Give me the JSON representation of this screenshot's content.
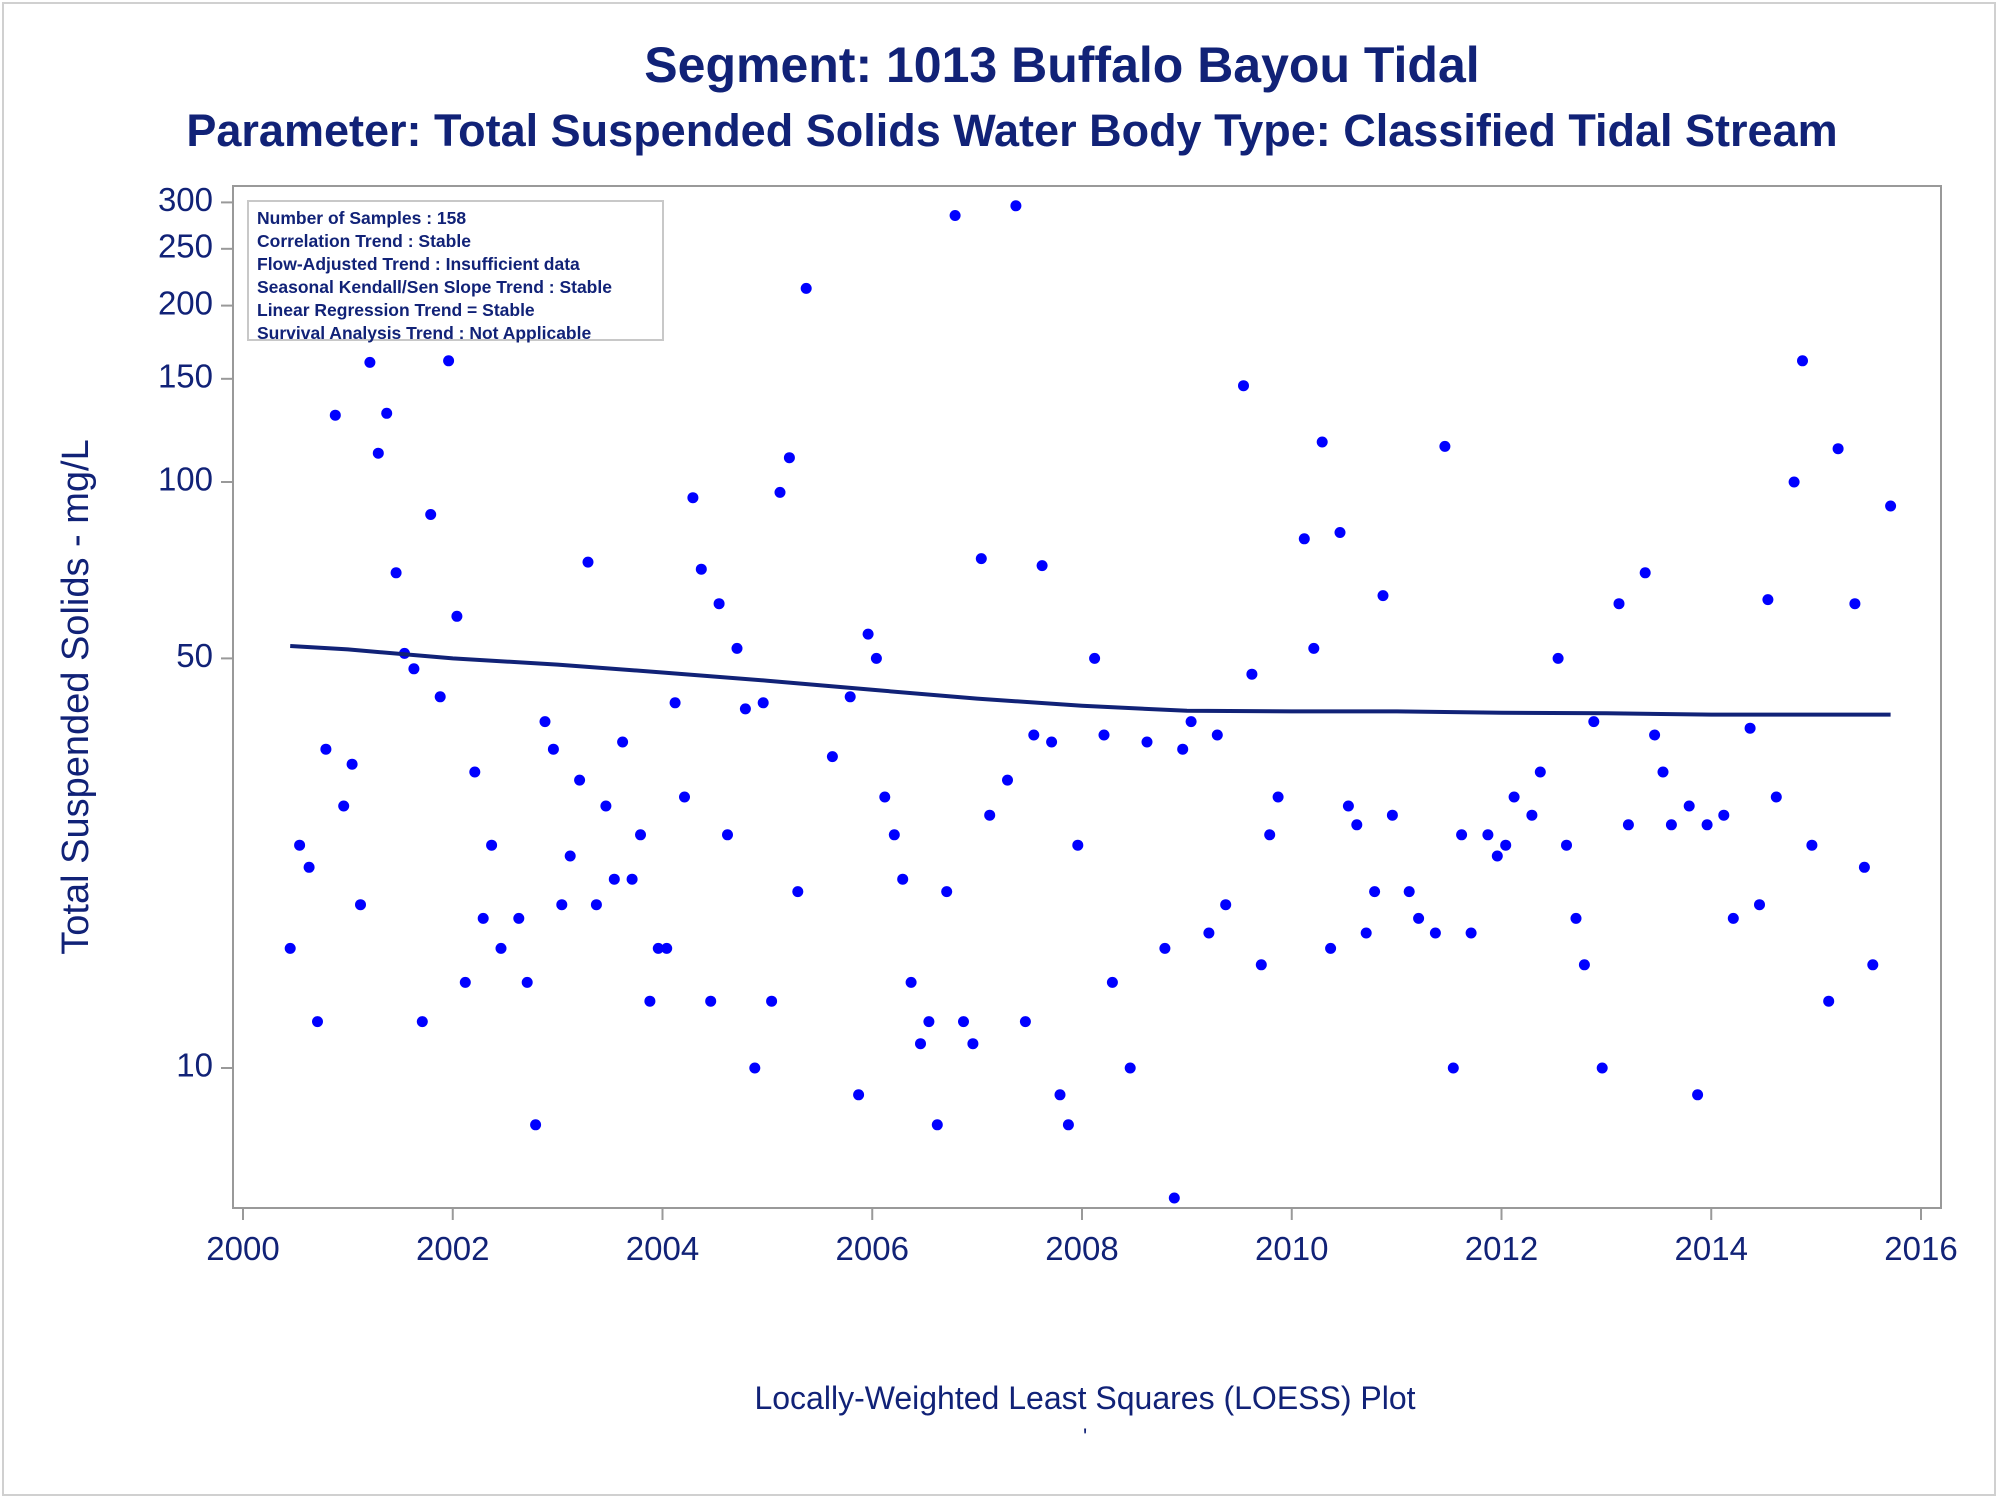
{
  "header": {
    "title": "Segment: 1013  Buffalo Bayou Tidal",
    "subtitle": "Parameter: Total Suspended Solids   Water Body Type: Classified Tidal Stream"
  },
  "stats": [
    "Number of Samples : 158",
    "Correlation Trend : Stable",
    "Flow-Adjusted Trend : Insufficient data",
    "Seasonal Kendall/Sen Slope Trend : Stable",
    "Linear Regression Trend = Stable",
    "Survival Analysis Trend : Not Applicable"
  ],
  "footer": {
    "label": "Locally-Weighted Least Squares (LOESS) Plot",
    "mark": "'"
  },
  "colors": {
    "text": "#112277",
    "points": "#0000ff",
    "line": "#112277",
    "axis": "#999999"
  },
  "chart_data": {
    "type": "scatter",
    "title": "Segment: 1013  Buffalo Bayou Tidal",
    "subtitle": "Parameter: Total Suspended Solids   Water Body Type: Classified Tidal Stream",
    "xlabel": "",
    "ylabel": "Total Suspended Solids - mg/L",
    "x_scale": "linear",
    "y_scale": "log",
    "xlim": [
      1999.9,
      2016.3
    ],
    "ylim": [
      6,
      330
    ],
    "x_ticks": [
      2000,
      2002,
      2004,
      2006,
      2008,
      2010,
      2012,
      2014,
      2016
    ],
    "y_ticks": [
      10,
      50,
      100,
      150,
      200,
      250,
      300
    ],
    "grid": false,
    "legend": "none",
    "series": [
      {
        "type": "scatter",
        "points": [
          [
            2000.45,
            16
          ],
          [
            2000.54,
            24
          ],
          [
            2000.63,
            22
          ],
          [
            2000.71,
            12
          ],
          [
            2000.79,
            35
          ],
          [
            2000.88,
            130
          ],
          [
            2000.96,
            28
          ],
          [
            2001.04,
            33
          ],
          [
            2001.12,
            19
          ],
          [
            2001.21,
            160
          ],
          [
            2001.29,
            112
          ],
          [
            2001.37,
            131
          ],
          [
            2001.46,
            70
          ],
          [
            2001.54,
            51
          ],
          [
            2001.63,
            48
          ],
          [
            2001.71,
            12
          ],
          [
            2001.79,
            88
          ],
          [
            2001.88,
            43
          ],
          [
            2001.96,
            161
          ],
          [
            2002.04,
            59
          ],
          [
            2002.12,
            14
          ],
          [
            2002.21,
            32
          ],
          [
            2002.29,
            18
          ],
          [
            2002.37,
            24
          ],
          [
            2002.46,
            16
          ],
          [
            2002.54,
            192
          ],
          [
            2002.63,
            18
          ],
          [
            2002.71,
            14
          ],
          [
            2002.79,
            8
          ],
          [
            2002.88,
            39
          ],
          [
            2002.96,
            35
          ],
          [
            2003.04,
            19
          ],
          [
            2003.12,
            23
          ],
          [
            2003.21,
            31
          ],
          [
            2003.29,
            73
          ],
          [
            2003.37,
            19
          ],
          [
            2003.46,
            28
          ],
          [
            2003.54,
            21
          ],
          [
            2003.62,
            36
          ],
          [
            2003.71,
            21
          ],
          [
            2003.79,
            25
          ],
          [
            2003.88,
            13
          ],
          [
            2003.96,
            16
          ],
          [
            2004.04,
            16
          ],
          [
            2004.12,
            42
          ],
          [
            2004.21,
            29
          ],
          [
            2004.29,
            94
          ],
          [
            2004.37,
            71
          ],
          [
            2004.46,
            13
          ],
          [
            2004.54,
            62
          ],
          [
            2004.62,
            25
          ],
          [
            2004.71,
            52
          ],
          [
            2004.79,
            41
          ],
          [
            2004.88,
            10
          ],
          [
            2004.96,
            42
          ],
          [
            2005.04,
            13
          ],
          [
            2005.12,
            96
          ],
          [
            2005.21,
            110
          ],
          [
            2005.29,
            20
          ],
          [
            2005.37,
            214
          ],
          [
            2005.62,
            34
          ],
          [
            2005.79,
            43
          ],
          [
            2005.87,
            9
          ],
          [
            2005.96,
            55
          ],
          [
            2006.04,
            50
          ],
          [
            2006.12,
            29
          ],
          [
            2006.21,
            25
          ],
          [
            2006.29,
            21
          ],
          [
            2006.37,
            14
          ],
          [
            2006.46,
            11
          ],
          [
            2006.54,
            12
          ],
          [
            2006.62,
            8
          ],
          [
            2006.71,
            20
          ],
          [
            2006.79,
            285
          ],
          [
            2006.87,
            12
          ],
          [
            2006.96,
            11
          ],
          [
            2007.04,
            74
          ],
          [
            2007.12,
            27
          ],
          [
            2007.29,
            31
          ],
          [
            2007.37,
            296
          ],
          [
            2007.46,
            12
          ],
          [
            2007.54,
            37
          ],
          [
            2007.62,
            72
          ],
          [
            2007.71,
            36
          ],
          [
            2007.79,
            9
          ],
          [
            2007.87,
            8
          ],
          [
            2007.96,
            24
          ],
          [
            2008.12,
            50
          ],
          [
            2008.21,
            37
          ],
          [
            2008.29,
            14
          ],
          [
            2008.46,
            10
          ],
          [
            2008.62,
            36
          ],
          [
            2008.79,
            16
          ],
          [
            2008.88,
            6
          ],
          [
            2008.96,
            35
          ],
          [
            2009.04,
            39
          ],
          [
            2009.21,
            17
          ],
          [
            2009.29,
            37
          ],
          [
            2009.37,
            19
          ],
          [
            2009.54,
            146
          ],
          [
            2009.62,
            47
          ],
          [
            2009.71,
            15
          ],
          [
            2009.79,
            25
          ],
          [
            2009.87,
            29
          ],
          [
            2010.12,
            80
          ],
          [
            2010.21,
            52
          ],
          [
            2010.29,
            117
          ],
          [
            2010.37,
            16
          ],
          [
            2010.46,
            82
          ],
          [
            2010.54,
            28
          ],
          [
            2010.62,
            26
          ],
          [
            2010.71,
            17
          ],
          [
            2010.79,
            20
          ],
          [
            2010.87,
            64
          ],
          [
            2010.96,
            27
          ],
          [
            2011.12,
            20
          ],
          [
            2011.21,
            18
          ],
          [
            2011.37,
            17
          ],
          [
            2011.46,
            115
          ],
          [
            2011.54,
            10
          ],
          [
            2011.62,
            25
          ],
          [
            2011.71,
            17
          ],
          [
            2011.87,
            25
          ],
          [
            2011.96,
            23
          ],
          [
            2012.04,
            24
          ],
          [
            2012.12,
            29
          ],
          [
            2012.29,
            27
          ],
          [
            2012.37,
            32
          ],
          [
            2012.54,
            50
          ],
          [
            2012.62,
            24
          ],
          [
            2012.71,
            18
          ],
          [
            2012.79,
            15
          ],
          [
            2012.88,
            39
          ],
          [
            2012.96,
            10
          ],
          [
            2013.12,
            62
          ],
          [
            2013.21,
            26
          ],
          [
            2013.37,
            70
          ],
          [
            2013.46,
            37
          ],
          [
            2013.54,
            32
          ],
          [
            2013.62,
            26
          ],
          [
            2013.79,
            28
          ],
          [
            2013.87,
            9
          ],
          [
            2013.96,
            26
          ],
          [
            2014.12,
            27
          ],
          [
            2014.21,
            18
          ],
          [
            2014.37,
            38
          ],
          [
            2014.46,
            19
          ],
          [
            2014.54,
            63
          ],
          [
            2014.62,
            29
          ],
          [
            2014.79,
            100
          ],
          [
            2014.87,
            161
          ],
          [
            2014.96,
            24
          ],
          [
            2015.12,
            13
          ],
          [
            2015.21,
            114
          ],
          [
            2015.37,
            62
          ],
          [
            2015.46,
            22
          ],
          [
            2015.54,
            15
          ],
          [
            2015.71,
            91
          ]
        ]
      },
      {
        "type": "line",
        "points": [
          [
            2000.45,
            52.5
          ],
          [
            2001.0,
            51.8
          ],
          [
            2002.0,
            50.0
          ],
          [
            2003.0,
            48.8
          ],
          [
            2004.0,
            47.3
          ],
          [
            2005.0,
            45.8
          ],
          [
            2006.0,
            44.2
          ],
          [
            2007.0,
            42.7
          ],
          [
            2008.0,
            41.5
          ],
          [
            2009.0,
            40.7
          ],
          [
            2010.0,
            40.6
          ],
          [
            2011.0,
            40.6
          ],
          [
            2012.0,
            40.4
          ],
          [
            2013.0,
            40.3
          ],
          [
            2014.0,
            40.1
          ],
          [
            2015.0,
            40.1
          ],
          [
            2015.71,
            40.1
          ]
        ]
      }
    ]
  }
}
